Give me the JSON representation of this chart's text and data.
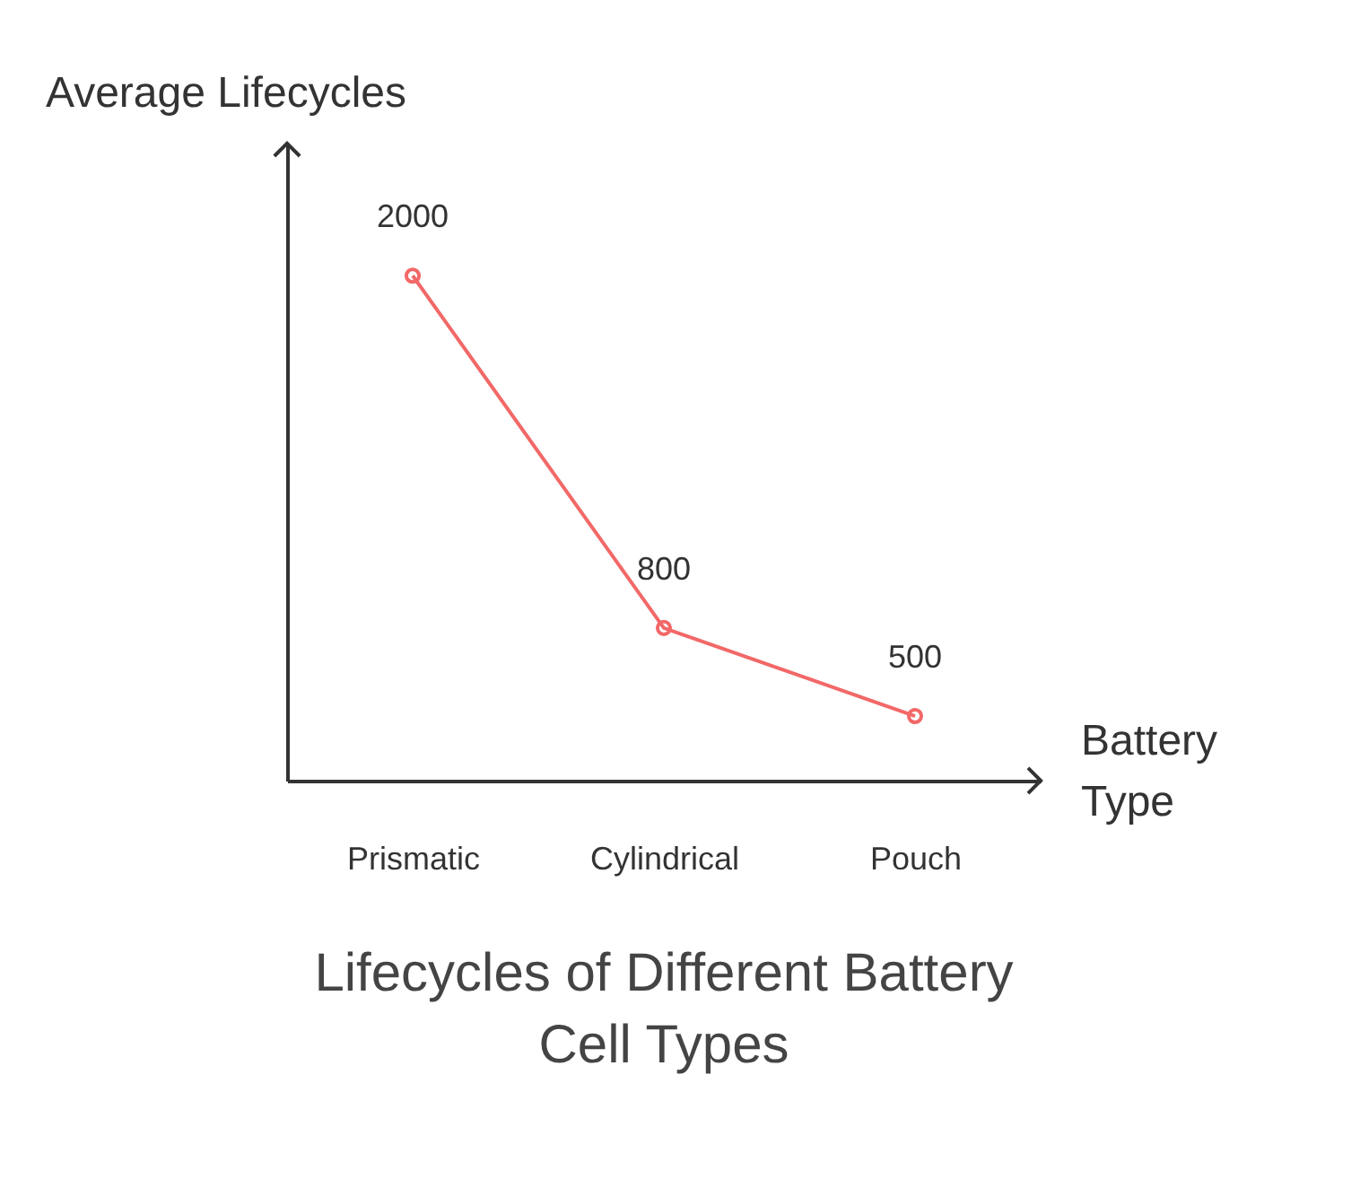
{
  "chart_data": {
    "type": "line",
    "title": "Lifecycles of Different Battery Cell Types",
    "xlabel": "Battery Type",
    "ylabel": "Average Lifecycles",
    "categories": [
      "Prismatic",
      "Cylindrical",
      "Pouch"
    ],
    "series": [
      {
        "color": "#f26868",
        "values": [
          2000,
          800,
          500
        ]
      }
    ],
    "ylim": [
      280,
      2450
    ],
    "data_labels": true,
    "marker": "circle",
    "grid": false
  }
}
